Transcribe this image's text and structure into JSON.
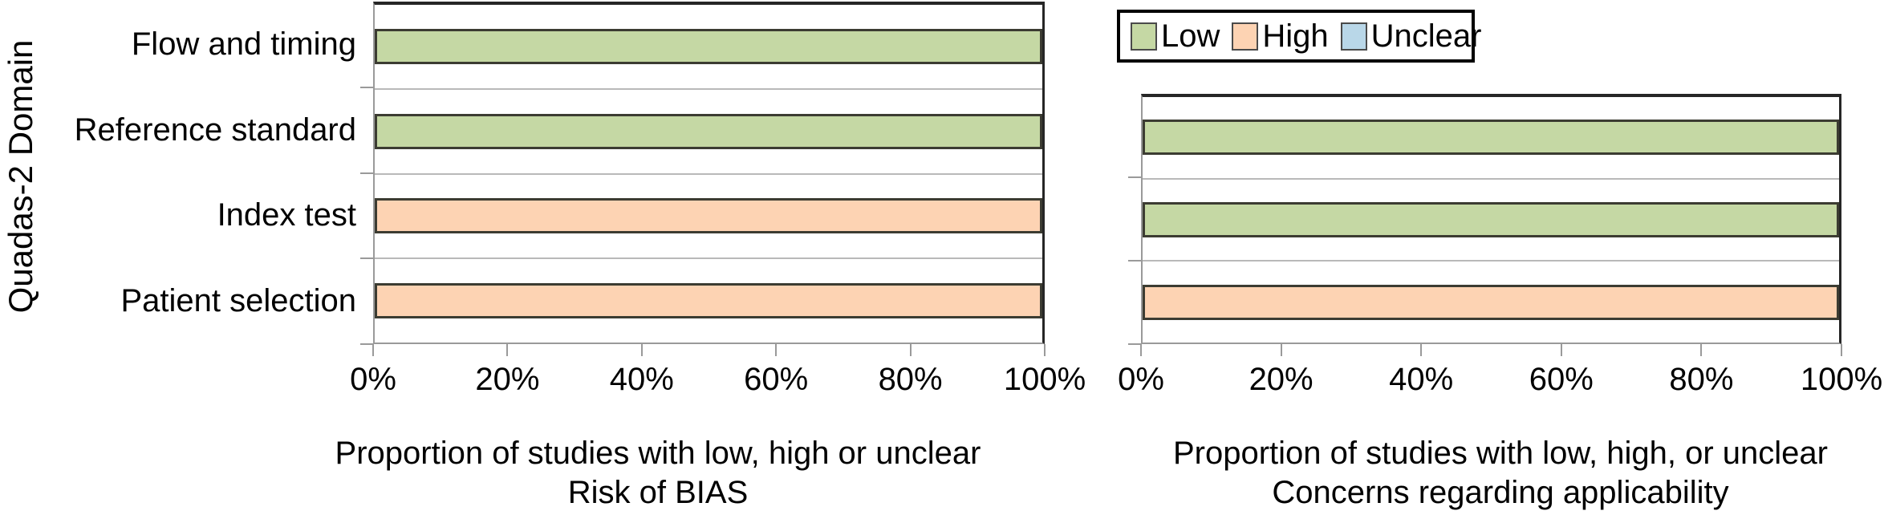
{
  "legend": {
    "entries": [
      {
        "label": "Low",
        "color": "#c5d8a4"
      },
      {
        "label": "High",
        "color": "#fdd3b3"
      },
      {
        "label": "Unclear",
        "color": "#b9d7e8"
      }
    ],
    "position": "top-right"
  },
  "chart_data": [
    {
      "type": "bar",
      "orientation": "horizontal",
      "stacked_percent": true,
      "ylabel": "Quadas-2 Domain",
      "categories": [
        "Flow and timing",
        "Reference standard",
        "Index test",
        "Patient selection"
      ],
      "series": [
        {
          "name": "Low",
          "values": [
            100,
            100,
            0,
            0
          ]
        },
        {
          "name": "High",
          "values": [
            0,
            0,
            100,
            100
          ]
        },
        {
          "name": "Unclear",
          "values": [
            0,
            0,
            0,
            0
          ]
        }
      ],
      "x_ticks": [
        "0%",
        "20%",
        "40%",
        "60%",
        "80%",
        "100%"
      ],
      "xlim": [
        0,
        100
      ],
      "grid": "between-categories",
      "xlabel": [
        "Proportion of studies with low, high or unclear",
        "Risk of BIAS"
      ]
    },
    {
      "type": "bar",
      "orientation": "horizontal",
      "stacked_percent": true,
      "categories": [
        "Reference standard",
        "Index test",
        "Patient selection"
      ],
      "series": [
        {
          "name": "Low",
          "values": [
            100,
            100,
            0
          ]
        },
        {
          "name": "High",
          "values": [
            0,
            0,
            100
          ]
        },
        {
          "name": "Unclear",
          "values": [
            0,
            0,
            0
          ]
        }
      ],
      "x_ticks": [
        "0%",
        "20%",
        "40%",
        "60%",
        "80%",
        "100%"
      ],
      "xlim": [
        0,
        100
      ],
      "grid": "between-categories",
      "xlabel": [
        "Proportion of studies with low, high, or unclear",
        "Concerns regarding applicability"
      ]
    }
  ]
}
